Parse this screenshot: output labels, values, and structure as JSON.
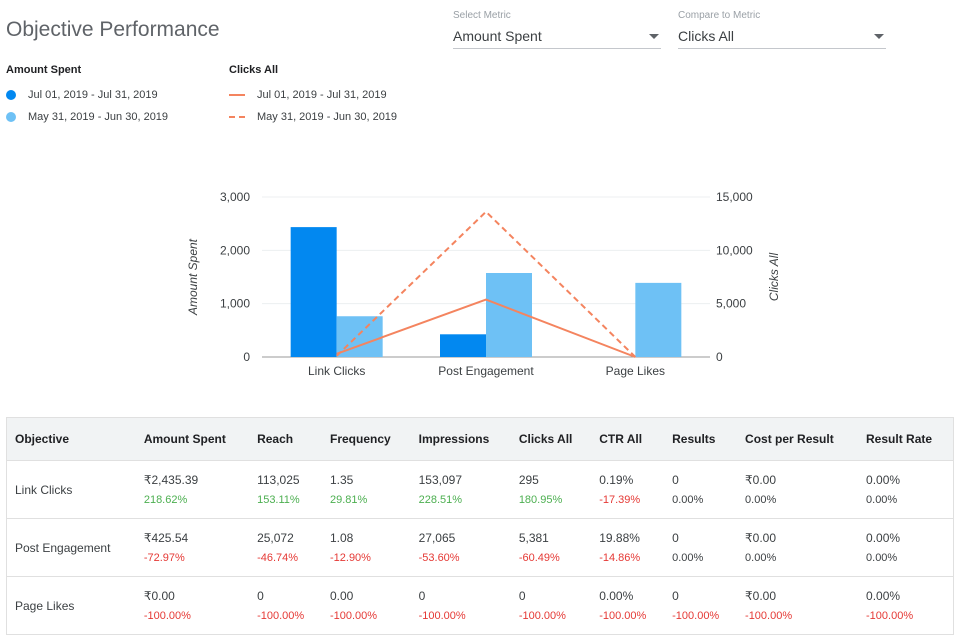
{
  "title": "Objective Performance",
  "select_metric": {
    "label": "Select Metric",
    "value": "Amount Spent"
  },
  "compare_metric": {
    "label": "Compare to Metric",
    "value": "Clicks All"
  },
  "legend": {
    "amount": {
      "title": "Amount Spent",
      "current": "Jul 01, 2019 - Jul 31, 2019",
      "previous": "May 31, 2019 - Jun 30, 2019"
    },
    "clicks": {
      "title": "Clicks All",
      "current": "Jul 01, 2019 - Jul 31, 2019",
      "previous": "May 31, 2019 - Jun 30, 2019"
    }
  },
  "colors": {
    "current_bar": "#0288f0",
    "previous_bar": "#6ec1f5",
    "line": "#f4845f"
  },
  "chart_data": {
    "type": "bar",
    "categories": [
      "Link Clicks",
      "Post Engagement",
      "Page Likes"
    ],
    "series": [
      {
        "name": "Amount Spent Jul 01, 2019 - Jul 31, 2019",
        "kind": "bar",
        "axis": "left",
        "values": [
          2435.39,
          425.54,
          0
        ]
      },
      {
        "name": "Amount Spent May 31, 2019 - Jun 30, 2019",
        "kind": "bar",
        "axis": "left",
        "values": [
          764,
          1575,
          1390
        ]
      },
      {
        "name": "Clicks All Jul 01, 2019 - Jul 31, 2019",
        "kind": "line",
        "style": "solid",
        "axis": "right",
        "values": [
          295,
          5381,
          0
        ]
      },
      {
        "name": "Clicks All May 31, 2019 - Jun 30, 2019",
        "kind": "line",
        "style": "dashed",
        "axis": "right",
        "values": [
          105,
          13618,
          0
        ]
      }
    ],
    "ylabel": "Amount Spent",
    "ylabel_right": "Clicks All",
    "ylim": [
      0,
      3000
    ],
    "ylim_right": [
      0,
      15000
    ],
    "yticks": [
      "0",
      "1,000",
      "2,000",
      "3,000"
    ],
    "yticks_right": [
      "0",
      "5,000",
      "10,000",
      "15,000"
    ]
  },
  "table": {
    "headers": [
      "Objective",
      "Amount Spent",
      "Reach",
      "Frequency",
      "Impressions",
      "Clicks All",
      "CTR All",
      "Results",
      "Cost per Result",
      "Result Rate"
    ],
    "rows": [
      {
        "name": "Link Clicks",
        "cells": [
          {
            "v": "₹2,435.39",
            "d": "218.62%",
            "t": "pos"
          },
          {
            "v": "113,025",
            "d": "153.11%",
            "t": "pos"
          },
          {
            "v": "1.35",
            "d": "29.81%",
            "t": "pos"
          },
          {
            "v": "153,097",
            "d": "228.51%",
            "t": "pos"
          },
          {
            "v": "295",
            "d": "180.95%",
            "t": "pos"
          },
          {
            "v": "0.19%",
            "d": "-17.39%",
            "t": "neg"
          },
          {
            "v": "0",
            "d": "0.00%",
            "t": "neu"
          },
          {
            "v": "₹0.00",
            "d": "0.00%",
            "t": "neu"
          },
          {
            "v": "0.00%",
            "d": "0.00%",
            "t": "neu"
          }
        ]
      },
      {
        "name": "Post Engagement",
        "cells": [
          {
            "v": "₹425.54",
            "d": "-72.97%",
            "t": "neg"
          },
          {
            "v": "25,072",
            "d": "-46.74%",
            "t": "neg"
          },
          {
            "v": "1.08",
            "d": "-12.90%",
            "t": "neg"
          },
          {
            "v": "27,065",
            "d": "-53.60%",
            "t": "neg"
          },
          {
            "v": "5,381",
            "d": "-60.49%",
            "t": "neg"
          },
          {
            "v": "19.88%",
            "d": "-14.86%",
            "t": "neg"
          },
          {
            "v": "0",
            "d": "0.00%",
            "t": "neu"
          },
          {
            "v": "₹0.00",
            "d": "0.00%",
            "t": "neu"
          },
          {
            "v": "0.00%",
            "d": "0.00%",
            "t": "neu"
          }
        ]
      },
      {
        "name": "Page Likes",
        "cells": [
          {
            "v": "₹0.00",
            "d": "-100.00%",
            "t": "neg"
          },
          {
            "v": "0",
            "d": "-100.00%",
            "t": "neg"
          },
          {
            "v": "0.00",
            "d": "-100.00%",
            "t": "neg"
          },
          {
            "v": "0",
            "d": "-100.00%",
            "t": "neg"
          },
          {
            "v": "0",
            "d": "-100.00%",
            "t": "neg"
          },
          {
            "v": "0.00%",
            "d": "-100.00%",
            "t": "neg"
          },
          {
            "v": "0",
            "d": "-100.00%",
            "t": "neg"
          },
          {
            "v": "₹0.00",
            "d": "-100.00%",
            "t": "neg"
          },
          {
            "v": "0.00%",
            "d": "-100.00%",
            "t": "neg"
          }
        ]
      }
    ]
  }
}
